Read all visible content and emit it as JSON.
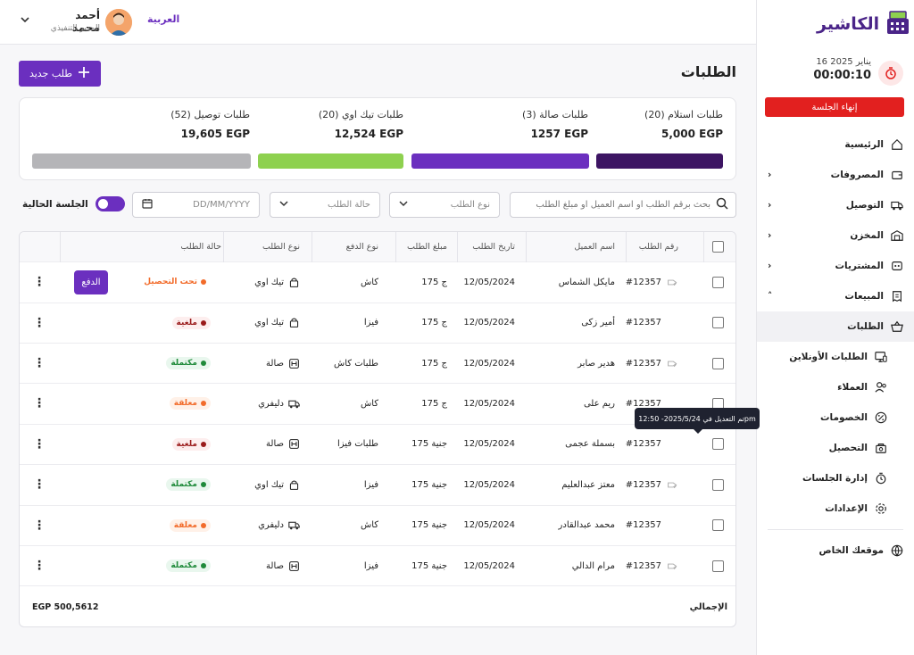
{
  "header": {
    "language": "العربية",
    "user_name": "أحمد محمد",
    "user_role": "المدير التنفيذي"
  },
  "sidebar": {
    "logo_text": "الكاشير",
    "date": "16 يناير 2025",
    "timer": "00:00:10",
    "end_session": "إنهاء الجلسة",
    "items": [
      {
        "label": "الرئيسية",
        "icon": "home-icon",
        "chevron": ""
      },
      {
        "label": "المصروفات",
        "icon": "wallet-icon",
        "chevron": "›"
      },
      {
        "label": "التوصيل",
        "icon": "truck-icon",
        "chevron": "›"
      },
      {
        "label": "المخزن",
        "icon": "warehouse-icon",
        "chevron": "›"
      },
      {
        "label": "المشتريات",
        "icon": "cart-icon",
        "chevron": "›"
      },
      {
        "label": "المبيعات",
        "icon": "receipt-icon",
        "chevron": "˄"
      },
      {
        "label": "الطلبات",
        "icon": "basket-icon",
        "chevron": ""
      },
      {
        "label": "الطلبات الأونلاين",
        "icon": "monitor-icon",
        "chevron": ""
      },
      {
        "label": "العملاء",
        "icon": "users-icon",
        "chevron": ""
      },
      {
        "label": "الخصومات",
        "icon": "discount-icon",
        "chevron": ""
      },
      {
        "label": "التحصيل",
        "icon": "collect-icon",
        "chevron": ""
      },
      {
        "label": "إدارة الجلسات",
        "icon": "stopwatch-icon",
        "chevron": ""
      },
      {
        "label": "الإعدادات",
        "icon": "gear-icon",
        "chevron": ""
      }
    ],
    "website": "موقعك الخاص"
  },
  "page": {
    "title": "الطلبات",
    "new_order": "طلب جديد"
  },
  "stats": [
    {
      "label": "طلبات استلام (20)",
      "value": "5,000 EGP",
      "color": "#3d1563"
    },
    {
      "label": "طلبات صالة (3)",
      "value": "1257 EGP",
      "color": "#6b2fbf"
    },
    {
      "label": "طلبات تيك اوي (20)",
      "value": "12,524 EGP",
      "color": "#8ed14f"
    },
    {
      "label": "طلبات توصيل (52)",
      "value": "19,605 EGP",
      "color": "#b5b5b8"
    }
  ],
  "filters": {
    "search_placeholder": "بحث برقم الطلب او اسم العميل او مبلغ الطلب",
    "order_type": "نوع الطلب",
    "order_status": "حالة الطلب",
    "date_placeholder": "DD/MM/YYYY",
    "current_session": "الجلسة الحالية"
  },
  "table": {
    "headers": {
      "id": "رقم الطلب",
      "customer": "اسم العميل",
      "date": "تاريخ الطلب",
      "amount": "مبلغ الطلب",
      "payment": "نوع الدفع",
      "type": "نوع الطلب",
      "status": "حالة الطلب"
    },
    "rows": [
      {
        "id": "#12357",
        "edited": true,
        "customer": "مايكل الشماس",
        "date": "12/05/2024",
        "amount": "175 ج",
        "payment": "كاش",
        "type": "تيك اوي",
        "type_icon": "bag-icon",
        "status": "تحت التحصيل",
        "status_color": "#f26b2a",
        "status_bg": "#ffffff",
        "pay": "الدفع"
      },
      {
        "id": "#12357",
        "edited": false,
        "customer": "أمير زكى",
        "date": "12/05/2024",
        "amount": "175 ج",
        "payment": "فيزا",
        "type": "تيك اوي",
        "type_icon": "bag-icon",
        "status": "ملغية",
        "status_color": "#9a1a1a",
        "status_bg": "#fdeeee",
        "pay": ""
      },
      {
        "id": "#12357",
        "edited": true,
        "customer": "هدير صابر",
        "date": "12/05/2024",
        "amount": "175 ج",
        "payment": "طلبات كاش",
        "type": "صالة",
        "type_icon": "dine-icon",
        "status": "مكتملة",
        "status_color": "#1f8a3a",
        "status_bg": "#e9f7ee",
        "pay": ""
      },
      {
        "id": "#12357",
        "edited": false,
        "customer": "ريم على",
        "date": "12/05/2024",
        "amount": "175 ج",
        "payment": "كاش",
        "type": "دليفري",
        "type_icon": "truck-icon",
        "status": "معلقة",
        "status_color": "#f26b2a",
        "status_bg": "#fff1e8",
        "pay": ""
      },
      {
        "id": "#12357",
        "edited": false,
        "customer": "بسملة عجمى",
        "date": "12/05/2024",
        "amount": "175 جنية",
        "payment": "طلبات فيزا",
        "type": "صالة",
        "type_icon": "dine-icon",
        "status": "ملغية",
        "status_color": "#9a1a1a",
        "status_bg": "#fdeeee",
        "pay": ""
      },
      {
        "id": "#12357",
        "edited": true,
        "customer": "معتز عبدالعليم",
        "date": "12/05/2024",
        "amount": "175 جنية",
        "payment": "فيزا",
        "type": "تيك اوي",
        "type_icon": "bag-icon",
        "status": "مكتملة",
        "status_color": "#1f8a3a",
        "status_bg": "#e9f7ee",
        "pay": ""
      },
      {
        "id": "#12357",
        "edited": false,
        "customer": "محمد عبدالقادر",
        "date": "12/05/2024",
        "amount": "175 جنية",
        "payment": "كاش",
        "type": "دليفري",
        "type_icon": "truck-icon",
        "status": "معلقة",
        "status_color": "#f26b2a",
        "status_bg": "#fff1e8",
        "pay": ""
      },
      {
        "id": "#12357",
        "edited": true,
        "customer": "مرام الدالي",
        "date": "12/05/2024",
        "amount": "175 جنية",
        "payment": "فيزا",
        "type": "صالة",
        "type_icon": "dine-icon",
        "status": "مكتملة",
        "status_color": "#1f8a3a",
        "status_bg": "#e9f7ee",
        "pay": ""
      }
    ],
    "total_label": "الإجمالي",
    "total_value": "EGP 500,5612"
  },
  "tooltip": "تم التعديل في 2025/5/24- 12:50pm"
}
